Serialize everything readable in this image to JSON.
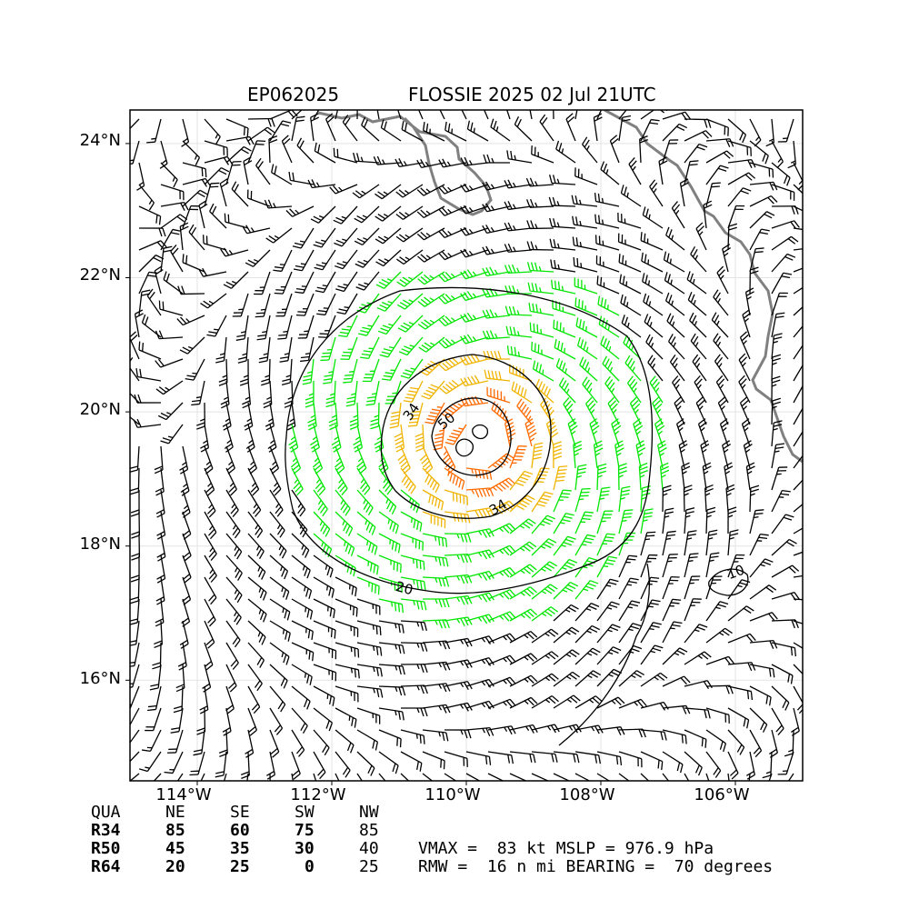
{
  "header": {
    "storm_id": "EP062025",
    "storm_title": "FLOSSIE 2025 02 Jul 21UTC"
  },
  "axes": {
    "lat_labels": [
      "24°N",
      "22°N",
      "20°N",
      "18°N",
      "16°N"
    ],
    "lat_values": [
      24,
      22,
      20,
      18,
      16
    ],
    "lon_labels": [
      "114°W",
      "112°W",
      "110°W",
      "108°W",
      "106°W"
    ],
    "lon_values": [
      -114,
      -112,
      -110,
      -108,
      -106
    ],
    "lon_range": [
      -115,
      -105
    ],
    "lat_range": [
      14.5,
      24.5
    ]
  },
  "storm": {
    "center": [
      -109.8,
      19.55
    ]
  },
  "contours": {
    "labels": [
      "34",
      "50",
      "34",
      "20",
      "10"
    ]
  },
  "wind_colors": {
    "calm": "#000000",
    "ts34": "#00e600",
    "ts50": "#f0b400",
    "hur64": "#ff6a00",
    "coast": "#808080"
  },
  "radii_table": {
    "columns": [
      "QUA",
      "NE",
      "SE",
      "SW",
      "NW"
    ],
    "rows": [
      {
        "label": "R34",
        "values": [
          "85",
          "60",
          "75",
          "85"
        ]
      },
      {
        "label": "R50",
        "values": [
          "45",
          "35",
          "30",
          "40"
        ]
      },
      {
        "label": "R64",
        "values": [
          "20",
          "25",
          "0",
          "25"
        ]
      }
    ]
  },
  "summary": {
    "line1": "VMAX =  83 kt MSLP = 976.9 hPa",
    "line2": "RMW =  16 n mi BEARING =  70 degrees",
    "vmax_kt": 83,
    "mslp_hpa": 976.9,
    "rmw_nmi": 16,
    "bearing_deg": 70
  }
}
